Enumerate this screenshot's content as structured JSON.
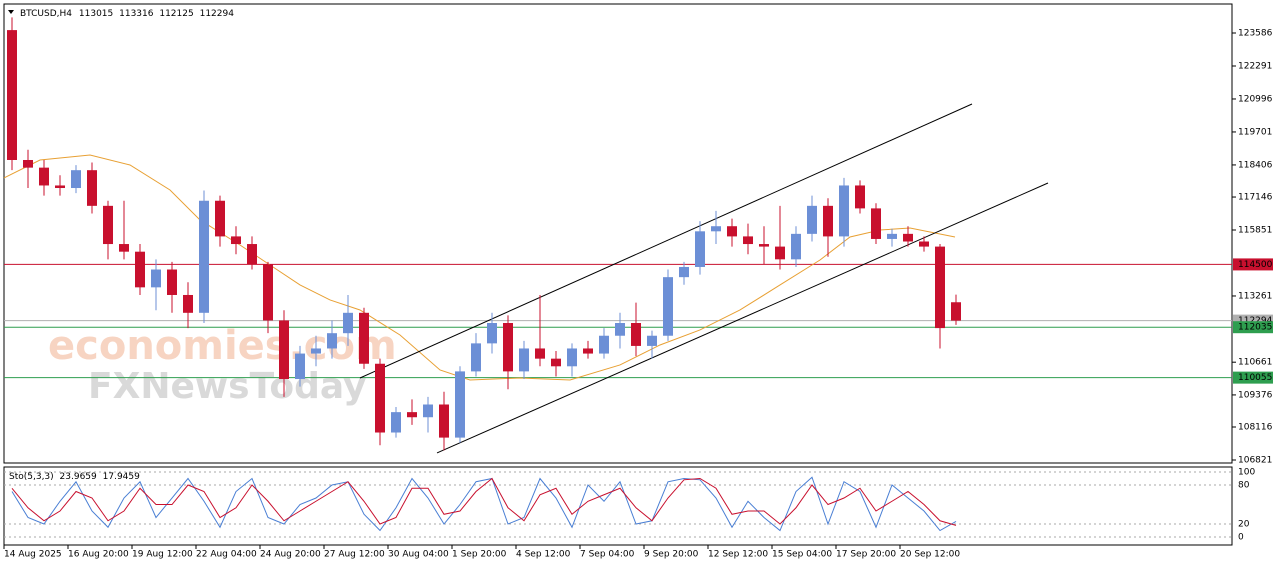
{
  "chart_data": {
    "type": "candlestick",
    "symbol": "BTCUSD,H4",
    "ohlc": [
      113015,
      113316,
      112125,
      112294
    ],
    "watermarks": [
      "economies.com",
      "FXNewsToday"
    ],
    "up_color": "#6c8fd6",
    "down_color": "#c8102e",
    "xlim": [
      0,
      307
    ],
    "ylim": [
      106703,
      124725
    ],
    "yticks": [
      123586,
      122291,
      120996,
      119701,
      118406,
      117146,
      115851,
      113261,
      110661,
      109376,
      108116,
      106821
    ],
    "xticks": [
      {
        "value": 0,
        "label": "14 Aug 2025"
      },
      {
        "value": 16,
        "label": "16 Aug 20:00"
      },
      {
        "value": 32,
        "label": "19 Aug 12:00"
      },
      {
        "value": 48,
        "label": "22 Aug 04:00"
      },
      {
        "value": 64,
        "label": "24 Aug 20:00"
      },
      {
        "value": 80,
        "label": "27 Aug 12:00"
      },
      {
        "value": 96,
        "label": "30 Aug 04:00"
      },
      {
        "value": 112,
        "label": "1 Sep 20:00"
      },
      {
        "value": 128,
        "label": "4 Sep 12:00"
      },
      {
        "value": 144,
        "label": "7 Sep 04:00"
      },
      {
        "value": 160,
        "label": "9 Sep 20:00"
      },
      {
        "value": 176,
        "label": "12 Sep 12:00"
      },
      {
        "value": 192,
        "label": "15 Sep 04:00"
      },
      {
        "value": 208,
        "label": "17 Sep 20:00"
      },
      {
        "value": 224,
        "label": "20 Sep 12:00"
      }
    ],
    "levels": [
      {
        "value": 114500,
        "color": "#c8102e"
      },
      {
        "value": 112035,
        "color": "#2e9e4f"
      },
      {
        "value": 110055,
        "color": "#2e9e4f"
      }
    ],
    "x": [
      2,
      6,
      10,
      14,
      18,
      22,
      26,
      30,
      34,
      38,
      42,
      46,
      50,
      54,
      58,
      62,
      66,
      70,
      74,
      78,
      82,
      86,
      90,
      94,
      98,
      102,
      106,
      110,
      114,
      118,
      122,
      126,
      130,
      134,
      138,
      142,
      146,
      150,
      154,
      158,
      162,
      166,
      170,
      174,
      178,
      182,
      186,
      190,
      194,
      198,
      202,
      206,
      210,
      214,
      218,
      222,
      226,
      230,
      234,
      238
    ],
    "candles": [
      [
        123700,
        124200,
        118200,
        118600
      ],
      [
        118600,
        119000,
        117500,
        118300
      ],
      [
        118300,
        118600,
        117200,
        117600
      ],
      [
        117600,
        118000,
        117200,
        117500
      ],
      [
        117500,
        118400,
        117300,
        118200
      ],
      [
        118200,
        118500,
        116500,
        116800
      ],
      [
        116800,
        117000,
        114700,
        115300
      ],
      [
        115300,
        117000,
        114700,
        115000
      ],
      [
        115000,
        115300,
        113300,
        113600
      ],
      [
        113600,
        114700,
        112700,
        114300
      ],
      [
        114300,
        114600,
        112600,
        113300
      ],
      [
        113300,
        113800,
        112000,
        112600
      ],
      [
        112600,
        117400,
        112200,
        117000
      ],
      [
        117000,
        117200,
        115200,
        115600
      ],
      [
        115600,
        116000,
        114900,
        115300
      ],
      [
        115300,
        115600,
        114300,
        114500
      ],
      [
        114500,
        114600,
        111800,
        112300
      ],
      [
        112300,
        112700,
        109300,
        110000
      ],
      [
        110000,
        111300,
        109700,
        111000
      ],
      [
        111000,
        111700,
        110500,
        111200
      ],
      [
        111200,
        112300,
        110800,
        111800
      ],
      [
        111800,
        113300,
        111300,
        112600
      ],
      [
        112600,
        112800,
        110400,
        110600
      ],
      [
        110600,
        110800,
        107400,
        107900
      ],
      [
        107900,
        108900,
        107700,
        108700
      ],
      [
        108700,
        109200,
        108200,
        108500
      ],
      [
        108500,
        109300,
        107900,
        109000
      ],
      [
        109000,
        109500,
        107200,
        107700
      ],
      [
        107700,
        110500,
        107500,
        110300
      ],
      [
        110300,
        111800,
        110100,
        111400
      ],
      [
        111400,
        112600,
        111000,
        112200
      ],
      [
        112200,
        112500,
        109600,
        110300
      ],
      [
        110300,
        111500,
        110000,
        111200
      ],
      [
        111200,
        113300,
        110500,
        110800
      ],
      [
        110800,
        111100,
        110100,
        110500
      ],
      [
        110500,
        111400,
        110100,
        111200
      ],
      [
        111200,
        111500,
        110800,
        111000
      ],
      [
        111000,
        112000,
        110800,
        111700
      ],
      [
        111700,
        112600,
        111200,
        112200
      ],
      [
        112200,
        113000,
        110900,
        111300
      ],
      [
        111300,
        111900,
        110800,
        111700
      ],
      [
        111700,
        114300,
        111500,
        114000
      ],
      [
        114000,
        114600,
        113700,
        114400
      ],
      [
        114400,
        116200,
        114100,
        115800
      ],
      [
        115800,
        116600,
        115300,
        116000
      ],
      [
        116000,
        116300,
        115200,
        115600
      ],
      [
        115600,
        116100,
        114900,
        115300
      ],
      [
        115300,
        116000,
        114500,
        115200
      ],
      [
        115200,
        116800,
        114300,
        114700
      ],
      [
        114700,
        116000,
        114400,
        115700
      ],
      [
        115700,
        117200,
        115400,
        116800
      ],
      [
        116800,
        117100,
        114800,
        115600
      ],
      [
        115600,
        117900,
        115200,
        117600
      ],
      [
        117600,
        117800,
        116500,
        116700
      ],
      [
        116700,
        116900,
        115300,
        115500
      ],
      [
        115500,
        115900,
        115200,
        115700
      ],
      [
        115700,
        116000,
        115200,
        115400
      ],
      [
        115400,
        115600,
        115000,
        115200
      ],
      [
        115200,
        115300,
        111200,
        112000
      ],
      [
        113015,
        113316,
        112125,
        112294
      ]
    ],
    "ma": {
      "color": "#e8a033",
      "x": [
        0,
        9,
        21.5,
        31.5,
        41.5,
        49,
        59,
        66.5,
        74,
        81.5,
        89,
        99,
        109,
        116.5,
        129,
        141.5,
        154,
        164,
        174,
        184,
        194,
        204,
        211.5,
        219,
        226.5,
        237.75
      ],
      "values": [
        117894,
        118600,
        118797,
        118404,
        117423,
        116245,
        115263,
        114478,
        113693,
        113104,
        112711,
        111730,
        110356,
        109963,
        110042,
        109963,
        110552,
        111337,
        111926,
        112711,
        113693,
        114674,
        115577,
        115852,
        115931,
        115577
      ]
    },
    "trendlines": [
      {
        "x": [
          89,
          242
        ],
        "y": [
          110041,
          120799
        ]
      },
      {
        "x": [
          108.25,
          261
        ],
        "y": [
          107097,
          117697
        ]
      }
    ],
    "stoch": {
      "label": "Sto(5,3,3)",
      "ylim": [
        -12.3,
        107.7
      ],
      "yticks": [
        100,
        80,
        20,
        0
      ],
      "k_color": "#4a7fd4",
      "d_color": "#c8102e",
      "k": [
        70,
        30,
        20,
        55,
        85,
        40,
        15,
        60,
        85,
        30,
        60,
        90,
        55,
        15,
        70,
        90,
        30,
        20,
        50,
        60,
        80,
        85,
        35,
        10,
        45,
        90,
        60,
        20,
        50,
        85,
        90,
        20,
        30,
        90,
        60,
        15,
        80,
        55,
        85,
        20,
        25,
        85,
        90,
        88,
        60,
        15,
        55,
        30,
        10,
        70,
        92,
        20,
        85,
        70,
        15,
        80,
        60,
        40,
        10,
        23.9659
      ],
      "d": [
        75,
        45,
        25,
        40,
        70,
        60,
        25,
        40,
        75,
        50,
        50,
        80,
        70,
        30,
        45,
        80,
        55,
        25,
        40,
        55,
        70,
        85,
        55,
        20,
        30,
        75,
        75,
        35,
        40,
        70,
        90,
        45,
        25,
        65,
        75,
        35,
        55,
        65,
        75,
        45,
        25,
        60,
        88,
        90,
        75,
        35,
        40,
        40,
        20,
        45,
        80,
        50,
        60,
        75,
        40,
        55,
        70,
        50,
        25,
        17.9459
      ]
    }
  }
}
